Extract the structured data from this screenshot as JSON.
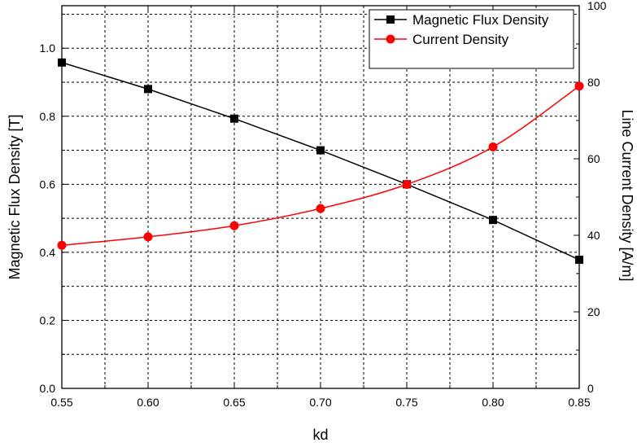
{
  "chart_data": {
    "type": "line",
    "title": "",
    "xlabel": "kd",
    "ylabel_left": "Magnetic Flux Density [T]",
    "ylabel_right": "Line Current Density [A/m]",
    "x": [
      0.55,
      0.6,
      0.65,
      0.7,
      0.75,
      0.8,
      0.85
    ],
    "x_ticks": [
      "0.55",
      "0.60",
      "0.65",
      "0.70",
      "0.75",
      "0.80",
      "0.85"
    ],
    "xlim": [
      0.55,
      0.85
    ],
    "ylim_left": [
      0.0,
      1.125
    ],
    "yticks_left": [
      "0.0",
      "0.2",
      "0.4",
      "0.6",
      "0.8",
      "1.0"
    ],
    "ylim_right": [
      0,
      100
    ],
    "yticks_right": [
      "0",
      "20",
      "40",
      "60",
      "80",
      "100"
    ],
    "grid": true,
    "legend_position": "top-right",
    "series": [
      {
        "name": "Magnetic Flux Density",
        "axis": "left",
        "color": "#000000",
        "marker": "square",
        "values": [
          0.958,
          0.88,
          0.793,
          0.7,
          0.6,
          0.495,
          0.378
        ]
      },
      {
        "name": "Current Density",
        "axis": "right",
        "color": "#ff0000",
        "marker": "circle",
        "values": [
          37.4,
          39.6,
          42.5,
          47.0,
          53.3,
          63.1,
          79.0
        ]
      }
    ]
  }
}
